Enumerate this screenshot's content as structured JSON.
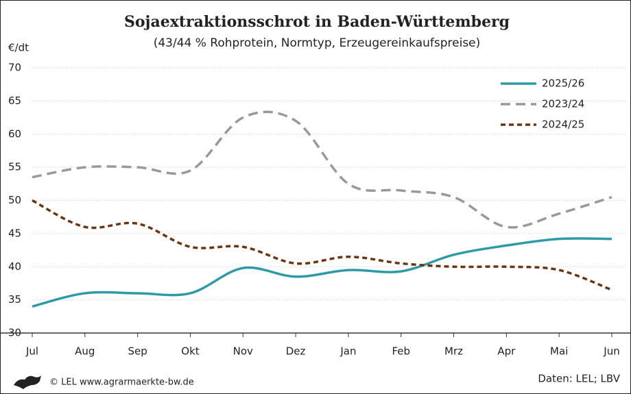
{
  "chart_data": {
    "type": "line",
    "title": "Sojaextraktionsschrot in Baden-Württemberg",
    "subtitle": "(43/44 % Rohprotein, Normtyp, Erzeugereinkaufspreise)",
    "y_label": "€/dt",
    "categories": [
      "Jul",
      "Aug",
      "Sep",
      "Okt",
      "Nov",
      "Dez",
      "Jan",
      "Feb",
      "Mrz",
      "Apr",
      "Mai",
      "Jun"
    ],
    "series": [
      {
        "name": "2025/26",
        "color": "#2e9aa8",
        "dash": "solid",
        "values": [
          34,
          36,
          36,
          36,
          39.8,
          38.5,
          39.5,
          39.3,
          41.8,
          43.2,
          44.2,
          44.2
        ]
      },
      {
        "name": "2023/24",
        "color": "#999999",
        "dash": "dashed",
        "values": [
          53.5,
          55,
          55,
          54.5,
          62.5,
          62,
          52.5,
          51.5,
          50.5,
          46,
          48,
          50.5
        ]
      },
      {
        "name": "2024/25",
        "color": "#6b3510",
        "dash": "dotted",
        "values": [
          50,
          46,
          46.5,
          43,
          43,
          40.5,
          41.5,
          40.5,
          40,
          40,
          39.5,
          36.5
        ]
      }
    ],
    "ylim": [
      30,
      70
    ],
    "yticks": [
      30,
      35,
      40,
      45,
      50,
      55,
      60,
      65,
      70
    ],
    "grid": true,
    "legend": "top-right",
    "source_left": "© LEL www.agrarmaerkte-bw.de",
    "source_right": "Daten: LEL; LBV"
  }
}
